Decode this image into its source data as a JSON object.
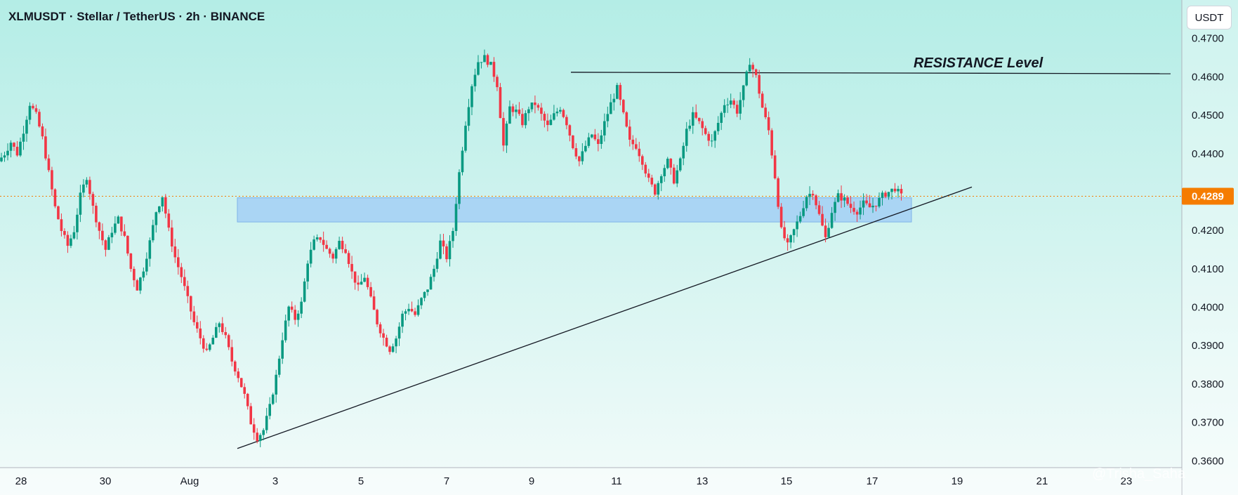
{
  "header": {
    "title": "XLMUSDT · Stellar / TetherUS · 2h · BINANCE",
    "currency_button": "USDT"
  },
  "annotation": {
    "resistance_label": "RESISTANCE Level"
  },
  "watermark": "@Trisha_Saha",
  "colors": {
    "background_top": "#b4ede6",
    "background_bottom": "#f3fbfa",
    "up": "#089981",
    "down": "#f23645",
    "support_zone": "#9ecbf5",
    "current_price_badge": "#f57c00",
    "line": "#131722"
  },
  "chart_data": {
    "type": "candlestick",
    "title": "XLMUSDT · Stellar / TetherUS · 2h · BINANCE",
    "y_axis": {
      "side": "right",
      "ticks": [
        "0.3600",
        "0.3700",
        "0.3800",
        "0.3900",
        "0.4000",
        "0.4100",
        "0.4200",
        "0.4300",
        "0.4400",
        "0.4500",
        "0.4600",
        "0.4700"
      ],
      "range": [
        0.3595,
        0.4705
      ],
      "current_price": "0.4289"
    },
    "x_axis": {
      "ticks": [
        "28",
        "30",
        "Aug",
        "3",
        "5",
        "7",
        "9",
        "11",
        "13",
        "15",
        "17",
        "19",
        "21",
        "23"
      ]
    },
    "grid": false,
    "support_zone": {
      "from": 0.4222,
      "to": 0.4285
    },
    "resistance_level": 0.461,
    "trendline": {
      "from_price": 0.3632,
      "to_price": 0.4313
    },
    "price_path": [
      [
        0.438,
        0.44,
        0.443,
        0.44,
        0.446,
        0.453,
        0.45,
        0.444,
        0.435,
        0.426,
        0.42,
        0.416,
        0.42,
        0.429,
        0.434,
        0.426,
        0.42,
        0.415,
        0.42,
        0.423,
        0.418,
        0.41,
        0.405,
        0.41,
        0.417,
        0.425,
        0.429,
        0.42,
        0.413,
        0.408,
        0.402,
        0.396,
        0.392,
        0.388,
        0.392,
        0.396,
        0.392,
        0.386,
        0.382,
        0.377,
        0.37,
        0.366,
        0.368,
        0.374,
        0.382,
        0.392,
        0.4,
        0.397,
        0.401,
        0.412,
        0.417,
        0.418,
        0.415,
        0.413,
        0.417,
        0.415,
        0.409,
        0.405,
        0.408,
        0.402,
        0.396,
        0.392,
        0.389,
        0.392,
        0.398,
        0.4,
        0.398,
        0.402,
        0.405,
        0.41,
        0.417,
        0.413,
        0.42,
        0.435,
        0.448,
        0.458,
        0.464,
        0.465,
        0.463,
        0.458,
        0.442,
        0.452,
        0.451,
        0.448,
        0.452,
        0.453,
        0.45,
        0.447,
        0.45,
        0.452,
        0.448,
        0.442,
        0.438,
        0.442,
        0.445,
        0.442,
        0.448,
        0.453,
        0.457,
        0.45,
        0.443,
        0.442,
        0.438,
        0.433,
        0.43,
        0.435,
        0.438,
        0.433,
        0.438,
        0.446,
        0.45,
        0.448,
        0.445,
        0.443,
        0.448,
        0.453,
        0.454,
        0.451,
        0.457,
        0.464,
        0.46,
        0.452,
        0.446,
        0.434,
        0.42,
        0.416,
        0.42,
        0.424,
        0.429,
        0.43,
        0.424,
        0.418,
        0.425,
        0.429,
        0.428,
        0.426,
        0.425,
        0.427,
        0.426,
        0.427,
        0.429,
        0.43,
        0.431,
        0.4289
      ]
    ]
  }
}
